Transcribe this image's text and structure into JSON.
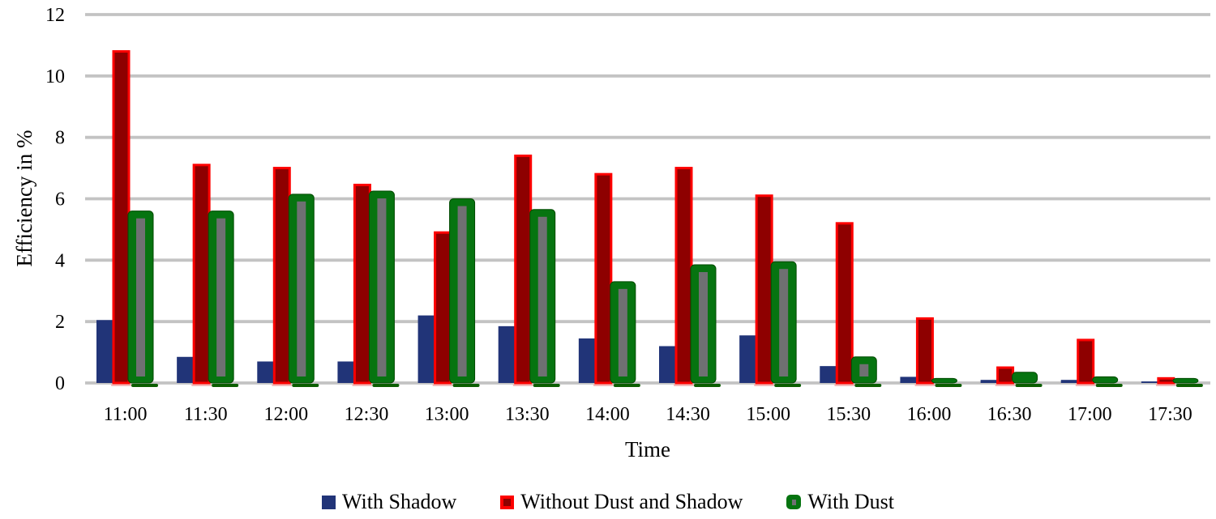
{
  "chart_data": {
    "type": "bar",
    "title": "",
    "xlabel": "Time",
    "ylabel": "Efficiency in %",
    "ylim": [
      0,
      12
    ],
    "ytick_step": 2,
    "yticks": [
      0,
      2,
      4,
      6,
      8,
      10,
      12
    ],
    "grid": "horizontal-gray",
    "legend_position": "bottom-center",
    "categories": [
      "11:00",
      "11:30",
      "12:00",
      "12:30",
      "13:00",
      "13:30",
      "14:00",
      "14:30",
      "15:00",
      "15:30",
      "16:00",
      "16:30",
      "17:00",
      "17:30"
    ],
    "series": [
      {
        "name": "With Shadow",
        "style": "plain",
        "color": "#213478",
        "values": [
          2.05,
          0.85,
          0.7,
          0.7,
          2.2,
          1.85,
          1.45,
          1.2,
          1.55,
          0.55,
          0.2,
          0.1,
          0.1,
          0.05
        ]
      },
      {
        "name": "Without Dust and Shadow",
        "style": "outlined",
        "color": "#8E0000",
        "border_color": "#FD0100",
        "shadow_color": "#F2BABA",
        "values": [
          10.8,
          7.1,
          7.0,
          6.45,
          4.9,
          7.4,
          6.8,
          7.0,
          6.1,
          5.2,
          2.1,
          0.5,
          1.4,
          0.15
        ]
      },
      {
        "name": "With Dust",
        "style": "framed",
        "color": "#067410",
        "edge_color": "#004A00",
        "inner_color": "#6F7072",
        "shadow_color": "#0B5E00",
        "values": [
          5.6,
          5.6,
          6.15,
          6.25,
          6.0,
          5.65,
          3.3,
          3.85,
          3.95,
          0.85,
          0.15,
          0.35,
          0.2,
          0.15
        ]
      }
    ],
    "gridline_color": "#C3C3C3",
    "text_color": "#000000"
  }
}
